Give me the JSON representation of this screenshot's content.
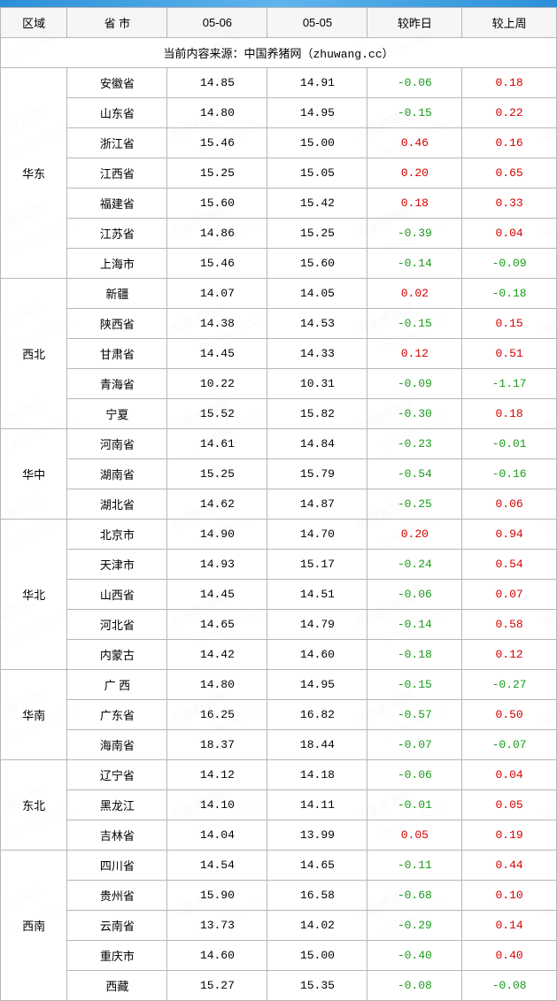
{
  "watermark_cn": "中国养猪网",
  "watermark_en": "ZHUWANG.CC",
  "source_line": "当前内容来源：中国养猪网（zhuwang.cc）",
  "columns": [
    "区域",
    "省 市",
    "05-06",
    "05-05",
    "较昨日",
    "较上周"
  ],
  "col_widths": [
    "12%",
    "18%",
    "18%",
    "18%",
    "17%",
    "17%"
  ],
  "pos_color": "#d40000",
  "neg_color": "#1a9b1a",
  "regions": [
    {
      "name": "华东",
      "rows": [
        [
          "安徽省",
          "14.85",
          "14.91",
          "-0.06",
          "0.18"
        ],
        [
          "山东省",
          "14.80",
          "14.95",
          "-0.15",
          "0.22"
        ],
        [
          "浙江省",
          "15.46",
          "15.00",
          "0.46",
          "0.16"
        ],
        [
          "江西省",
          "15.25",
          "15.05",
          "0.20",
          "0.65"
        ],
        [
          "福建省",
          "15.60",
          "15.42",
          "0.18",
          "0.33"
        ],
        [
          "江苏省",
          "14.86",
          "15.25",
          "-0.39",
          "0.04"
        ],
        [
          "上海市",
          "15.46",
          "15.60",
          "-0.14",
          "-0.09"
        ]
      ]
    },
    {
      "name": "西北",
      "rows": [
        [
          "新疆",
          "14.07",
          "14.05",
          "0.02",
          "-0.18"
        ],
        [
          "陕西省",
          "14.38",
          "14.53",
          "-0.15",
          "0.15"
        ],
        [
          "甘肃省",
          "14.45",
          "14.33",
          "0.12",
          "0.51"
        ],
        [
          "青海省",
          "10.22",
          "10.31",
          "-0.09",
          "-1.17"
        ],
        [
          "宁夏",
          "15.52",
          "15.82",
          "-0.30",
          "0.18"
        ]
      ]
    },
    {
      "name": "华中",
      "rows": [
        [
          "河南省",
          "14.61",
          "14.84",
          "-0.23",
          "-0.01"
        ],
        [
          "湖南省",
          "15.25",
          "15.79",
          "-0.54",
          "-0.16"
        ],
        [
          "湖北省",
          "14.62",
          "14.87",
          "-0.25",
          "0.06"
        ]
      ]
    },
    {
      "name": "华北",
      "rows": [
        [
          "北京市",
          "14.90",
          "14.70",
          "0.20",
          "0.94"
        ],
        [
          "天津市",
          "14.93",
          "15.17",
          "-0.24",
          "0.54"
        ],
        [
          "山西省",
          "14.45",
          "14.51",
          "-0.06",
          "0.07"
        ],
        [
          "河北省",
          "14.65",
          "14.79",
          "-0.14",
          "0.58"
        ],
        [
          "内蒙古",
          "14.42",
          "14.60",
          "-0.18",
          "0.12"
        ]
      ]
    },
    {
      "name": "华南",
      "rows": [
        [
          "广 西",
          "14.80",
          "14.95",
          "-0.15",
          "-0.27"
        ],
        [
          "广东省",
          "16.25",
          "16.82",
          "-0.57",
          "0.50"
        ],
        [
          "海南省",
          "18.37",
          "18.44",
          "-0.07",
          "-0.07"
        ]
      ]
    },
    {
      "name": "东北",
      "rows": [
        [
          "辽宁省",
          "14.12",
          "14.18",
          "-0.06",
          "0.04"
        ],
        [
          "黑龙江",
          "14.10",
          "14.11",
          "-0.01",
          "0.05"
        ],
        [
          "吉林省",
          "14.04",
          "13.99",
          "0.05",
          "0.19"
        ]
      ]
    },
    {
      "name": "西南",
      "rows": [
        [
          "四川省",
          "14.54",
          "14.65",
          "-0.11",
          "0.44"
        ],
        [
          "贵州省",
          "15.90",
          "16.58",
          "-0.68",
          "0.10"
        ],
        [
          "云南省",
          "13.73",
          "14.02",
          "-0.29",
          "0.14"
        ],
        [
          "重庆市",
          "14.60",
          "15.00",
          "-0.40",
          "0.40"
        ],
        [
          "西藏",
          "15.27",
          "15.35",
          "-0.08",
          "-0.08"
        ]
      ]
    }
  ]
}
